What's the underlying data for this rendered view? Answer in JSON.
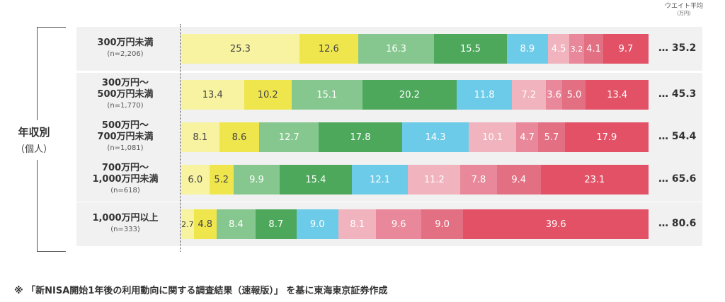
{
  "header": {
    "title": "ウエイト平均",
    "unit": "（万円）"
  },
  "group_label": {
    "main": "年収別",
    "sub": "（個人）"
  },
  "footnote": "※ 「新NISA開始1年後の利用動向に関する調査結果（速報版）」 を基に東海東京証券作成",
  "colors": [
    "#f7f3a1",
    "#efe64e",
    "#86c78f",
    "#4ea85c",
    "#6ccbe8",
    "#f1b3bd",
    "#e8889a",
    "#e36f83",
    "#e35166"
  ],
  "chart_data": {
    "type": "bar",
    "orientation": "horizontal",
    "stacked": true,
    "percent_stacked": true,
    "categories": [
      {
        "label": "300万円未満",
        "n": "(n=2,206)",
        "avg": "… 35.2"
      },
      {
        "label": "300万円～ 500万円未満",
        "n": "(n=1,770)",
        "avg": "… 45.3"
      },
      {
        "label": "500万円～ 700万円未満",
        "n": "(n=1,081)",
        "avg": "… 54.4"
      },
      {
        "label": "700万円～ 1,000万円未満",
        "n": "(n=618)",
        "avg": "… 65.6"
      },
      {
        "label": "1,000万円以上",
        "n": "(n=333)",
        "avg": "… 80.6"
      }
    ],
    "rows": [
      [
        "25.3",
        "12.6",
        "16.3",
        "15.5",
        "8.9",
        "4.5",
        "3.2",
        "4.1",
        "9.7"
      ],
      [
        "13.4",
        "10.2",
        "15.1",
        "20.2",
        "11.8",
        "7.2",
        "3.6",
        "5.0",
        "13.4"
      ],
      [
        "8.1",
        "8.6",
        "12.7",
        "17.8",
        "14.3",
        "10.1",
        "4.7",
        "5.7",
        "17.9"
      ],
      [
        "6.0",
        "5.2",
        "9.9",
        "15.4",
        "12.1",
        "11.2",
        "7.8",
        "9.4",
        "23.1"
      ],
      [
        "2.7",
        "4.8",
        "8.4",
        "8.7",
        "9.0",
        "8.1",
        "9.6",
        "9.0",
        "39.6"
      ]
    ],
    "xlim": [
      0,
      100
    ],
    "grid": false,
    "legend": "none"
  }
}
